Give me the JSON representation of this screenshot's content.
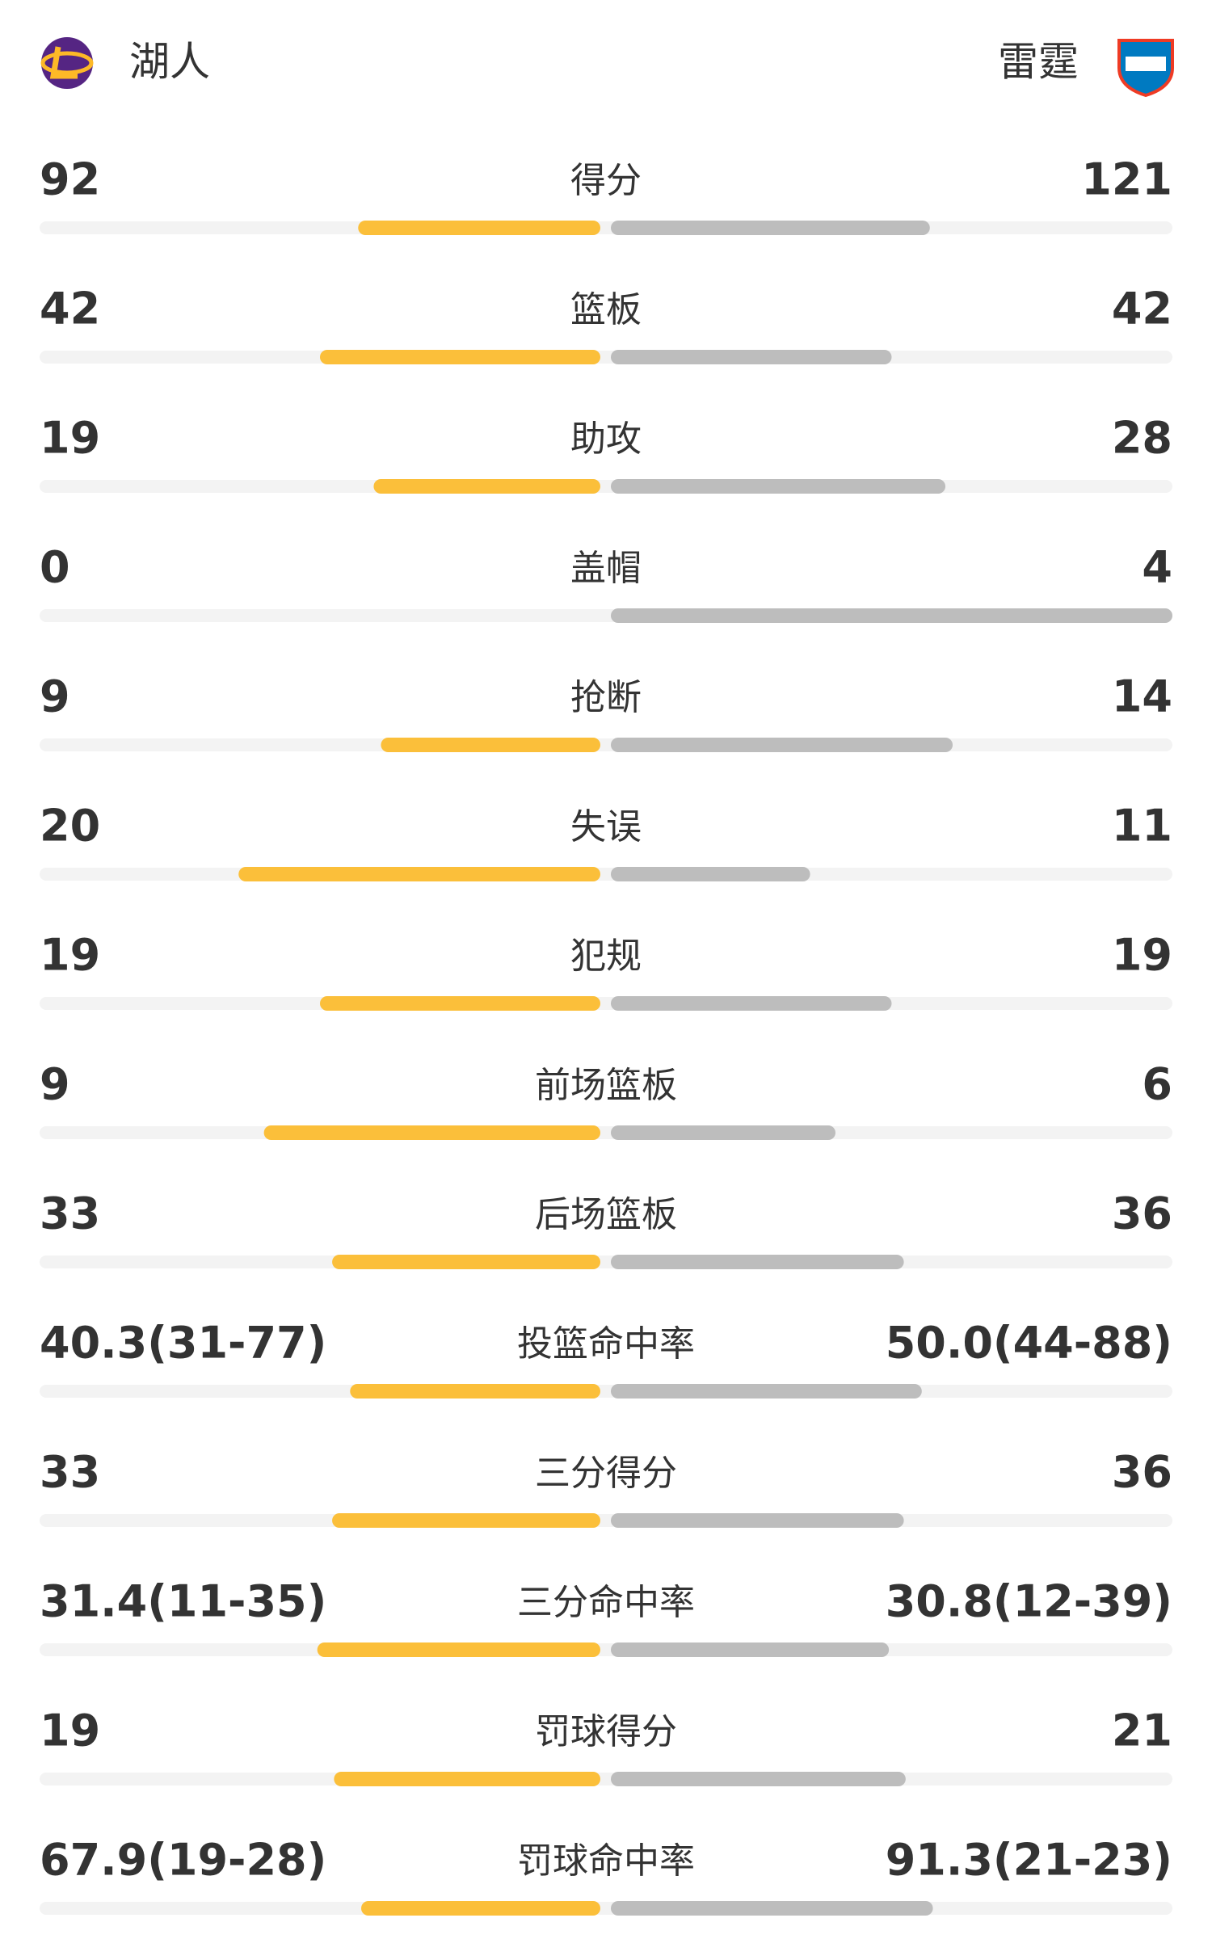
{
  "header": {
    "home_team": "湖人",
    "away_team": "雷霆"
  },
  "rows": [
    {
      "label": "得分",
      "home": 92,
      "away": 121
    },
    {
      "label": "篮板",
      "home": 42,
      "away": 42
    },
    {
      "label": "助攻",
      "home": 19,
      "away": 28
    },
    {
      "label": "盖帽",
      "home": 0,
      "away": 4
    },
    {
      "label": "抢断",
      "home": 9,
      "away": 14
    },
    {
      "label": "失误",
      "home": 20,
      "away": 11
    },
    {
      "label": "犯规",
      "home": 19,
      "away": 19
    },
    {
      "label": "前场篮板",
      "home": 9,
      "away": 6
    },
    {
      "label": "后场篮板",
      "home": 33,
      "away": 36
    },
    {
      "label": "投篮命中率",
      "home": {
        "value": 40.3,
        "label": "40.3(31-77)"
      },
      "away": {
        "value": 50.0,
        "label": "50.0(44-88)"
      }
    },
    {
      "label": "三分得分",
      "home": 33,
      "away": 36
    },
    {
      "label": "三分命中率",
      "home": {
        "value": 31.4,
        "label": "31.4(11-35)"
      },
      "away": {
        "value": 30.8,
        "label": "30.8(12-39)"
      }
    },
    {
      "label": "罚球得分",
      "home": 19,
      "away": 21
    },
    {
      "label": "罚球命中率",
      "home": {
        "value": 67.9,
        "label": "67.9(19-28)"
      },
      "away": {
        "value": 91.3,
        "label": "91.3(21-23)"
      }
    }
  ]
}
